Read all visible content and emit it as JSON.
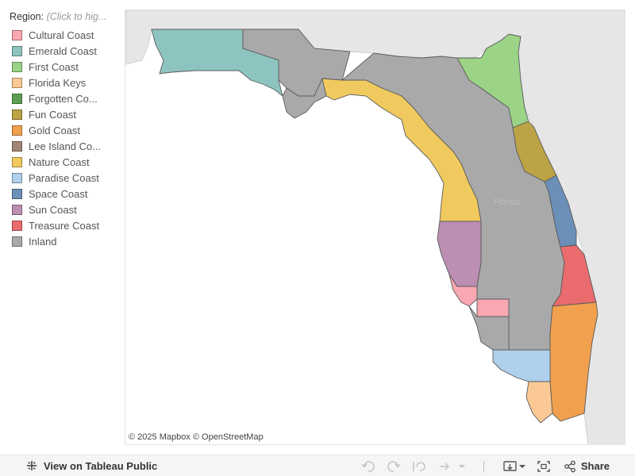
{
  "legend": {
    "title": "Region:",
    "hint": "(Click to hig...",
    "items": [
      {
        "label": "Cultural Coast",
        "color": "#f9a7b0"
      },
      {
        "label": "Emerald Coast",
        "color": "#8ec4bf"
      },
      {
        "label": "First Coast",
        "color": "#9bd387"
      },
      {
        "label": "Florida Keys",
        "color": "#fbc995"
      },
      {
        "label": "Forgotten Co...",
        "color": "#5ba052"
      },
      {
        "label": "Fun Coast",
        "color": "#bba346"
      },
      {
        "label": "Gold Coast",
        "color": "#f1a04e"
      },
      {
        "label": "Lee Island Co...",
        "color": "#a18576"
      },
      {
        "label": "Nature Coast",
        "color": "#f1ca5f"
      },
      {
        "label": "Paradise Coast",
        "color": "#aed0ec"
      },
      {
        "label": "Space Coast",
        "color": "#6c8fb8"
      },
      {
        "label": "Sun Coast",
        "color": "#bb8eb2"
      },
      {
        "label": "Treasure Coast",
        "color": "#e96b6d"
      },
      {
        "label": "Inland",
        "color": "#a9a9a9"
      }
    ]
  },
  "map": {
    "attribution": "© 2025 Mapbox  © OpenStreetMap",
    "state_label": "Florida",
    "land_color": "#e6e6e6",
    "water_color": "#ffffff",
    "border_color": "#5a5a5a"
  },
  "toolbar": {
    "view_label": "View on Tableau Public",
    "share_label": "Share"
  }
}
